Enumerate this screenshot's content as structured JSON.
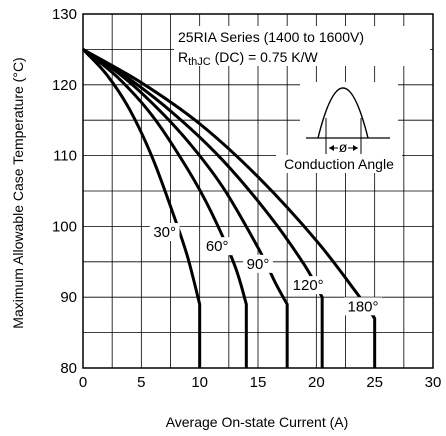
{
  "chart_data": {
    "type": "line",
    "xlabel": "Average On-state Current (A)",
    "ylabel": "Maximum Allowable Case Temperature (°C)",
    "xlim": [
      0,
      30
    ],
    "ylim": [
      80,
      130
    ],
    "x_ticks": [
      0,
      5,
      10,
      15,
      20,
      25,
      30
    ],
    "y_ticks": [
      80,
      90,
      100,
      110,
      120,
      130
    ],
    "grid": true,
    "annotations": {
      "series_text": "25RIA Series (1400 to 1600V)",
      "rth_main": "R",
      "rth_sub": "thJC",
      "rth_rest": " (DC) = 0.75 K/W",
      "angle_symbol": "ø",
      "conduction_label": "Conduction Angle"
    },
    "series": [
      {
        "name": "30°",
        "points": [
          [
            0,
            125
          ],
          [
            2,
            121.5
          ],
          [
            4,
            116.5
          ],
          [
            6,
            109.5
          ],
          [
            8,
            100.5
          ],
          [
            9,
            95.5
          ],
          [
            10,
            89
          ],
          [
            10,
            80
          ]
        ]
      },
      {
        "name": "60°",
        "points": [
          [
            0,
            125
          ],
          [
            3,
            121
          ],
          [
            6,
            115.5
          ],
          [
            9,
            108
          ],
          [
            11,
            102
          ],
          [
            13,
            94.5
          ],
          [
            14,
            89
          ],
          [
            14,
            80
          ]
        ]
      },
      {
        "name": "90°",
        "points": [
          [
            0,
            125
          ],
          [
            3,
            121.7
          ],
          [
            6,
            117.3
          ],
          [
            9,
            112
          ],
          [
            12,
            105.5
          ],
          [
            15,
            97
          ],
          [
            16.5,
            92
          ],
          [
            17.5,
            89
          ],
          [
            17.5,
            80
          ]
        ]
      },
      {
        "name": "120°",
        "points": [
          [
            0,
            125
          ],
          [
            4,
            120.8
          ],
          [
            8,
            115.6
          ],
          [
            12,
            109.3
          ],
          [
            16,
            101.5
          ],
          [
            19,
            94.5
          ],
          [
            20.5,
            90
          ],
          [
            20.5,
            80
          ]
        ]
      },
      {
        "name": "180°",
        "points": [
          [
            0,
            125
          ],
          [
            5,
            120.3
          ],
          [
            10,
            114.5
          ],
          [
            15,
            107
          ],
          [
            20,
            98
          ],
          [
            23.5,
            90.5
          ],
          [
            25,
            87
          ],
          [
            25,
            80
          ]
        ]
      }
    ]
  }
}
